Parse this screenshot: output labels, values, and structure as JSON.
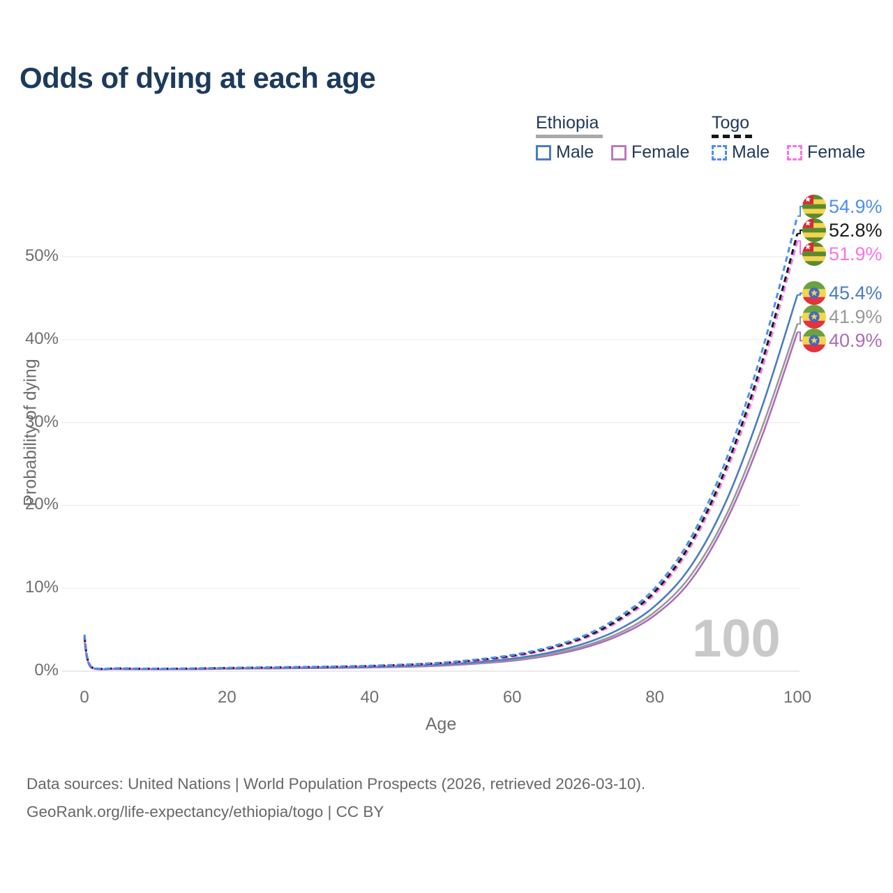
{
  "title": "Odds of dying at each age",
  "legend": {
    "groups": [
      {
        "name": "Ethiopia",
        "underline_color": "#a8a8a8",
        "underline_style": "solid",
        "items": [
          {
            "label": "Male",
            "color": "#4a7cc2",
            "dashed": false
          },
          {
            "label": "Female",
            "color": "#bd79bb",
            "dashed": false
          }
        ]
      },
      {
        "name": "Togo",
        "underline_color": "#161616",
        "underline_style": "dashed",
        "items": [
          {
            "label": "Male",
            "color": "#4f8def",
            "dashed": true
          },
          {
            "label": "Female",
            "color": "#f973e6",
            "dashed": true
          }
        ]
      }
    ]
  },
  "chart_data": {
    "type": "line",
    "title": "Odds of dying at each age",
    "xlabel": "Age",
    "ylabel": "Probability of dying",
    "x_ticks": [
      0,
      20,
      40,
      60,
      80,
      100
    ],
    "y_ticks": [
      {
        "value": 0,
        "label": "0%"
      },
      {
        "value": 10,
        "label": "10%"
      },
      {
        "value": 20,
        "label": "20%"
      },
      {
        "value": 30,
        "label": "30%"
      },
      {
        "value": 40,
        "label": "40%"
      },
      {
        "value": 50,
        "label": "50%"
      }
    ],
    "xlim": [
      0,
      100
    ],
    "ylim": [
      0,
      57
    ],
    "grid": "horizontal",
    "legend_position": "top-right",
    "hover_age_watermark": "100",
    "series": [
      {
        "id": "ethiopia-female",
        "country": "Ethiopia",
        "sex": "female",
        "name": "Ethiopia Female",
        "color": "#ad6cb8",
        "dashed": false,
        "flag": "ethiopia",
        "end_label": "40.9%",
        "points": [
          [
            0,
            3.6
          ],
          [
            1,
            0.38
          ],
          [
            5,
            0.25
          ],
          [
            10,
            0.22
          ],
          [
            15,
            0.24
          ],
          [
            20,
            0.28
          ],
          [
            25,
            0.32
          ],
          [
            30,
            0.35
          ],
          [
            35,
            0.39
          ],
          [
            40,
            0.44
          ],
          [
            45,
            0.52
          ],
          [
            50,
            0.66
          ],
          [
            55,
            0.91
          ],
          [
            60,
            1.26
          ],
          [
            65,
            1.86
          ],
          [
            70,
            2.8
          ],
          [
            75,
            4.32
          ],
          [
            80,
            6.75
          ],
          [
            85,
            10.9
          ],
          [
            90,
            18.1
          ],
          [
            95,
            28.3
          ],
          [
            100,
            40.9
          ]
        ]
      },
      {
        "id": "ethiopia-both",
        "country": "Ethiopia",
        "sex": "both",
        "name": "Ethiopia Both sexes",
        "color": "#999999",
        "dashed": false,
        "flag": "ethiopia",
        "end_label": "41.9%",
        "points": [
          [
            0,
            3.75
          ],
          [
            1,
            0.4
          ],
          [
            5,
            0.27
          ],
          [
            10,
            0.24
          ],
          [
            15,
            0.26
          ],
          [
            20,
            0.3
          ],
          [
            25,
            0.34
          ],
          [
            30,
            0.38
          ],
          [
            35,
            0.42
          ],
          [
            40,
            0.48
          ],
          [
            45,
            0.57
          ],
          [
            50,
            0.73
          ],
          [
            55,
            0.99
          ],
          [
            60,
            1.37
          ],
          [
            65,
            2.0
          ],
          [
            70,
            3.0
          ],
          [
            75,
            4.6
          ],
          [
            80,
            7.15
          ],
          [
            85,
            11.5
          ],
          [
            90,
            18.8
          ],
          [
            95,
            29.3
          ],
          [
            100,
            41.9
          ]
        ]
      },
      {
        "id": "ethiopia-male",
        "country": "Ethiopia",
        "sex": "male",
        "name": "Ethiopia Male",
        "color": "#4a7cc2",
        "dashed": false,
        "flag": "ethiopia",
        "end_label": "45.4%",
        "points": [
          [
            0,
            3.9
          ],
          [
            1,
            0.42
          ],
          [
            5,
            0.29
          ],
          [
            10,
            0.25
          ],
          [
            15,
            0.27
          ],
          [
            20,
            0.33
          ],
          [
            25,
            0.37
          ],
          [
            30,
            0.41
          ],
          [
            35,
            0.46
          ],
          [
            40,
            0.52
          ],
          [
            45,
            0.63
          ],
          [
            50,
            0.8
          ],
          [
            55,
            1.08
          ],
          [
            60,
            1.5
          ],
          [
            65,
            2.2
          ],
          [
            70,
            3.3
          ],
          [
            75,
            5.05
          ],
          [
            80,
            7.85
          ],
          [
            85,
            12.6
          ],
          [
            90,
            20.5
          ],
          [
            95,
            31.8
          ],
          [
            100,
            45.4
          ]
        ]
      },
      {
        "id": "togo-female",
        "country": "Togo",
        "sex": "female",
        "name": "Togo Female",
        "color": "#f973e6",
        "dashed": true,
        "flag": "togo",
        "end_label": "51.9%",
        "points": [
          [
            0,
            4.0
          ],
          [
            1,
            0.45
          ],
          [
            5,
            0.31
          ],
          [
            10,
            0.27
          ],
          [
            15,
            0.29
          ],
          [
            20,
            0.36
          ],
          [
            25,
            0.4
          ],
          [
            30,
            0.45
          ],
          [
            35,
            0.5
          ],
          [
            40,
            0.58
          ],
          [
            45,
            0.72
          ],
          [
            50,
            0.92
          ],
          [
            55,
            1.26
          ],
          [
            60,
            1.76
          ],
          [
            65,
            2.6
          ],
          [
            70,
            3.9
          ],
          [
            75,
            6.05
          ],
          [
            80,
            9.3
          ],
          [
            85,
            15.0
          ],
          [
            90,
            24.0
          ],
          [
            95,
            36.4
          ],
          [
            100,
            51.9
          ]
        ]
      },
      {
        "id": "togo-both",
        "country": "Togo",
        "sex": "both",
        "name": "Togo Both sexes",
        "color": "#1a1a1a",
        "dashed": true,
        "flag": "togo",
        "end_label": "52.8%",
        "points": [
          [
            0,
            4.2
          ],
          [
            1,
            0.48
          ],
          [
            5,
            0.33
          ],
          [
            10,
            0.29
          ],
          [
            15,
            0.31
          ],
          [
            20,
            0.38
          ],
          [
            25,
            0.43
          ],
          [
            30,
            0.48
          ],
          [
            35,
            0.53
          ],
          [
            40,
            0.62
          ],
          [
            45,
            0.76
          ],
          [
            50,
            0.97
          ],
          [
            55,
            1.33
          ],
          [
            60,
            1.85
          ],
          [
            65,
            2.72
          ],
          [
            70,
            4.05
          ],
          [
            75,
            6.25
          ],
          [
            80,
            9.6
          ],
          [
            85,
            15.4
          ],
          [
            90,
            24.6
          ],
          [
            95,
            37.2
          ],
          [
            100,
            52.8
          ]
        ]
      },
      {
        "id": "togo-male",
        "country": "Togo",
        "sex": "male",
        "name": "Togo Male",
        "color": "#4f8def",
        "dashed": true,
        "flag": "togo",
        "end_label": "54.9%",
        "points": [
          [
            0,
            4.4
          ],
          [
            1,
            0.5
          ],
          [
            5,
            0.35
          ],
          [
            10,
            0.3
          ],
          [
            15,
            0.33
          ],
          [
            20,
            0.4
          ],
          [
            25,
            0.45
          ],
          [
            30,
            0.5
          ],
          [
            35,
            0.56
          ],
          [
            40,
            0.65
          ],
          [
            45,
            0.8
          ],
          [
            50,
            1.02
          ],
          [
            55,
            1.4
          ],
          [
            60,
            1.95
          ],
          [
            65,
            2.85
          ],
          [
            70,
            4.25
          ],
          [
            75,
            6.55
          ],
          [
            80,
            10.0
          ],
          [
            85,
            16.0
          ],
          [
            90,
            25.5
          ],
          [
            95,
            38.5
          ],
          [
            100,
            54.9
          ]
        ]
      }
    ]
  },
  "footer": {
    "line1": "Data sources: United Nations | World Population Prospects (2026, retrieved 2026-03-10).",
    "line2": "GeoRank.org/life-expectancy/ethiopia/togo | CC BY"
  }
}
